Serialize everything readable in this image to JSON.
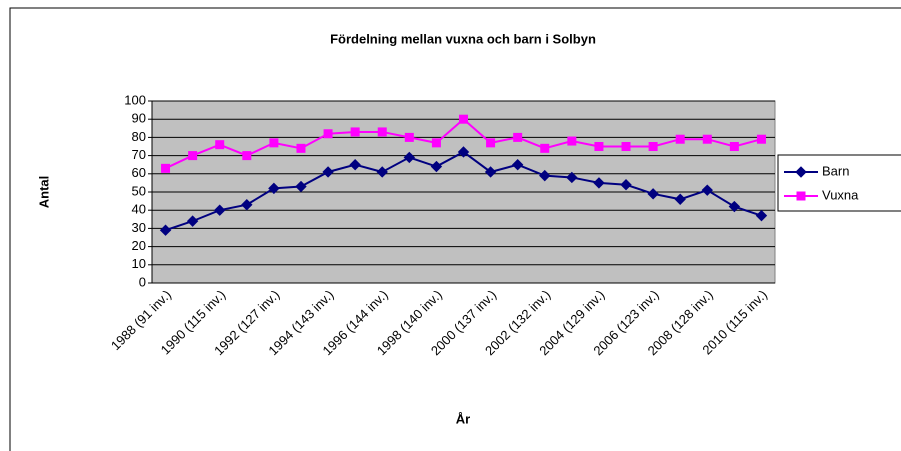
{
  "chart_data": {
    "type": "line",
    "title": "Fördelning mellan vuxna och barn i Solbyn",
    "x_label": "År",
    "y_label": "Antal",
    "categories": [
      "1988 (91 inv.)",
      null,
      "1990 (115 inv.)",
      null,
      "1992 (127 inv.)",
      null,
      "1994 (143 inv.)",
      null,
      "1996 (144 inv.)",
      null,
      "1998 (140 inv.)",
      null,
      "2000 (137 inv.)",
      null,
      "2002 (132 inv.)",
      null,
      "2004 (129 inv.)",
      null,
      "2006 (123 inv.)",
      null,
      "2008 (128 inv.)",
      null,
      "2010 (115 inv.)"
    ],
    "series": [
      {
        "name": "Barn",
        "color": "#000080",
        "marker": "diamond",
        "values": [
          29,
          34,
          40,
          43,
          52,
          53,
          61,
          65,
          61,
          69,
          64,
          72,
          61,
          65,
          59,
          58,
          55,
          54,
          49,
          46,
          51,
          42,
          37
        ]
      },
      {
        "name": "Vuxna",
        "color": "#ff00ff",
        "marker": "square",
        "values": [
          63,
          70,
          76,
          70,
          77,
          74,
          82,
          83,
          83,
          80,
          77,
          90,
          77,
          80,
          74,
          78,
          75,
          75,
          75,
          79,
          79,
          75,
          79
        ]
      }
    ],
    "ylim": [
      0,
      100
    ],
    "yticks": [
      0,
      10,
      20,
      30,
      40,
      50,
      60,
      70,
      80,
      90,
      100
    ],
    "grid": true,
    "plot_background": "#c0c0c0",
    "legend": "right"
  }
}
